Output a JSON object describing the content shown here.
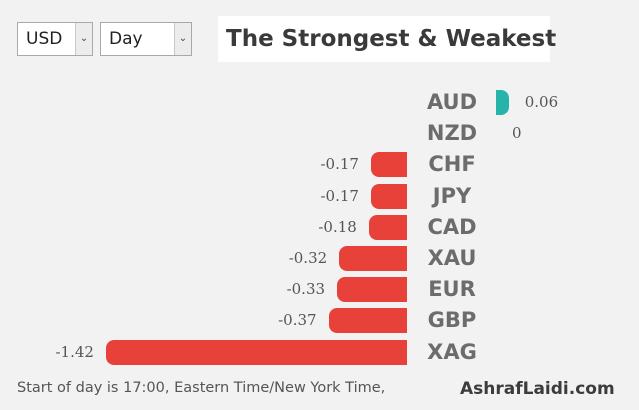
{
  "controls": {
    "currency": {
      "selected": "USD"
    },
    "period": {
      "selected": "Day"
    }
  },
  "title": "The Strongest & Weakest",
  "colors": {
    "positive": "#26b3aa",
    "negative": "#e8413a"
  },
  "chart_data": {
    "type": "bar",
    "orientation": "horizontal",
    "categories": [
      "AUD",
      "NZD",
      "CHF",
      "JPY",
      "CAD",
      "XAU",
      "EUR",
      "GBP",
      "XAG"
    ],
    "values": [
      0.06,
      0,
      -0.17,
      -0.17,
      -0.18,
      -0.32,
      -0.33,
      -0.37,
      -1.42
    ],
    "value_labels": [
      "0.06",
      "0",
      "-0.17",
      "-0.17",
      "-0.18",
      "-0.32",
      "-0.33",
      "-0.37",
      "-1.42"
    ]
  },
  "footer": {
    "note": "Start of day is 17:00, Eastern Time/New York Time,",
    "brand": "AshrafLaidi.com"
  }
}
